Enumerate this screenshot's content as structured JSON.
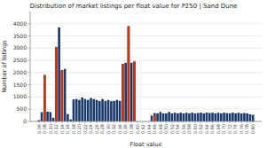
{
  "chart_data": {
    "type": "bar",
    "title": "Distribution of market listings per float value for P250 | Sand Dune",
    "xlabel": "Float value",
    "ylabel": "Number of listings",
    "x": [
      0.06,
      0.07,
      0.08,
      0.09,
      0.1,
      0.11,
      0.12,
      0.13,
      0.14,
      0.15,
      0.16,
      0.17,
      0.18,
      0.19,
      0.2,
      0.21,
      0.22,
      0.23,
      0.24,
      0.25,
      0.26,
      0.27,
      0.28,
      0.29,
      0.3,
      0.31,
      0.32,
      0.33,
      0.34,
      0.35,
      0.36,
      0.37,
      0.38,
      0.39,
      0.45,
      0.46,
      0.47,
      0.48,
      0.49,
      0.5,
      0.51,
      0.52,
      0.53,
      0.54,
      0.55,
      0.56,
      0.57,
      0.58,
      0.59,
      0.6,
      0.61,
      0.62,
      0.63,
      0.64,
      0.65,
      0.66,
      0.67,
      0.68,
      0.69,
      0.7,
      0.71,
      0.72,
      0.73,
      0.74,
      0.75,
      0.76,
      0.77,
      0.78,
      0.79,
      0.8
    ],
    "series": [
      {
        "color": "#1a3a6b",
        "values": [
          50,
          380,
          1900,
          400,
          380,
          150,
          3050,
          3850,
          2100,
          2150,
          300,
          80,
          900,
          920,
          880,
          980,
          920,
          880,
          960,
          920,
          880,
          840,
          920,
          840,
          880,
          830,
          840,
          880,
          840,
          2350,
          2400,
          3900,
          2400,
          2450,
          240,
          340,
          330,
          390,
          330,
          330,
          390,
          330,
          360,
          330,
          360,
          330,
          355,
          330,
          360,
          330,
          345,
          360,
          330,
          360,
          345,
          355,
          330,
          355,
          330,
          360,
          340,
          330,
          360,
          330,
          355,
          330,
          345,
          330,
          290,
          270
        ]
      },
      {
        "color": "#cc3311",
        "values": [
          0,
          0,
          1900,
          0,
          0,
          0,
          3050,
          0,
          2100,
          0,
          0,
          0,
          0,
          0,
          0,
          0,
          0,
          0,
          0,
          0,
          0,
          0,
          0,
          0,
          0,
          0,
          0,
          0,
          0,
          2350,
          0,
          3900,
          0,
          2450,
          0,
          240,
          0,
          0,
          0,
          0,
          0,
          0,
          0,
          0,
          0,
          0,
          0,
          0,
          0,
          0,
          0,
          0,
          0,
          0,
          0,
          0,
          0,
          0,
          0,
          0,
          0,
          0,
          0,
          0,
          0,
          0,
          0,
          0,
          0,
          0
        ]
      }
    ],
    "xlim": [
      0.03,
      0.83
    ],
    "xticks": [
      0.06,
      0.08,
      {
        "value": 0.1,
        "label": "0.10"
      },
      0.12,
      0.14,
      0.16,
      0.18,
      {
        "value": 0.2,
        "label": "0.20"
      },
      0.22,
      0.24,
      0.26,
      0.28,
      {
        "value": 0.3,
        "label": "0.30"
      },
      0.32,
      0.34,
      0.36,
      0.38,
      {
        "value": 0.4,
        "label": "0.40"
      },
      0.42,
      0.44,
      0.46,
      0.48,
      {
        "value": 0.5,
        "label": "0.50"
      },
      0.52,
      0.54,
      0.56,
      0.58,
      {
        "value": 0.6,
        "label": "0.60"
      },
      0.62,
      0.64,
      0.66,
      0.68,
      {
        "value": 0.7,
        "label": "0.70"
      },
      0.72,
      0.74,
      0.76,
      0.78,
      {
        "value": 0.8,
        "label": "0.80"
      }
    ],
    "ylim": [
      0,
      4500
    ],
    "yticks": [
      0,
      500,
      1000,
      1500,
      2000,
      2500,
      3000,
      3500,
      4000
    ],
    "grid": true
  }
}
